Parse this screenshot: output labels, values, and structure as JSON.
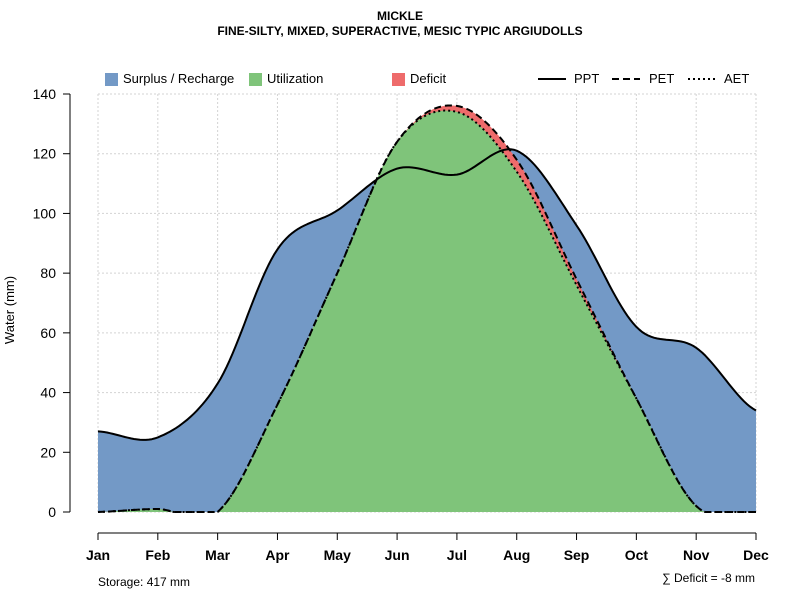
{
  "colors": {
    "surplus": "#7399c6",
    "utilization": "#7fc47a",
    "deficit": "#ee6b6b",
    "grid": "#d3d3d3"
  },
  "footer": {
    "storage": "Storage: 417 mm",
    "deficit": "∑ Deficit = -8 mm"
  },
  "chart_data": {
    "type": "area",
    "title": "MICKLE",
    "subtitle": "FINE-SILTY, MIXED, SUPERACTIVE, MESIC TYPIC ARGIUDOLLS",
    "xlabel": "",
    "ylabel": "Water (mm)",
    "ylim": [
      0,
      140
    ],
    "yticks": [
      0,
      20,
      40,
      60,
      80,
      100,
      120,
      140
    ],
    "grid": true,
    "categories": [
      "Jan",
      "Feb",
      "Mar",
      "Apr",
      "May",
      "Jun",
      "Jul",
      "Aug",
      "Sep",
      "Oct",
      "Nov",
      "Dec"
    ],
    "legend": {
      "fill": [
        "Surplus / Recharge",
        "Utilization",
        "Deficit"
      ],
      "lines": [
        "PPT",
        "PET",
        "AET"
      ]
    },
    "series": [
      {
        "name": "PPT",
        "style": "solid",
        "values": [
          27,
          25,
          43,
          88,
          101,
          115,
          113,
          121,
          96,
          62,
          55,
          34
        ]
      },
      {
        "name": "PET",
        "style": "dashed",
        "values": [
          0,
          1,
          0,
          36,
          80,
          124,
          136,
          118,
          78,
          38,
          2,
          0
        ]
      },
      {
        "name": "AET",
        "style": "dotted",
        "values": [
          0,
          1,
          0,
          36,
          80,
          124,
          134,
          114,
          76,
          38,
          2,
          0
        ]
      }
    ]
  }
}
